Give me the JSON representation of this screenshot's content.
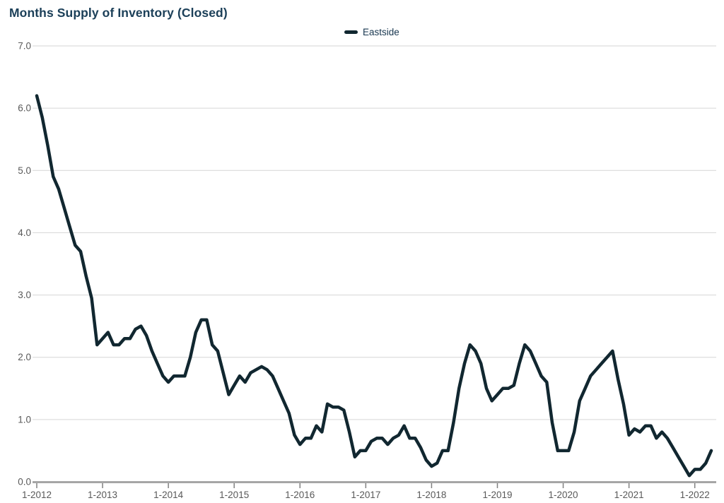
{
  "header": {
    "title": "Months Supply of Inventory (Closed)"
  },
  "legend": {
    "series_label": "Eastside"
  },
  "colors": {
    "title_text": "#1C4059",
    "legend_text": "#17364F",
    "line": "#112730",
    "grid": "#D6D6D6",
    "axis": "#A6A6A6",
    "tick": "#808080",
    "tick_label": "#595959"
  },
  "chart_data": {
    "type": "line",
    "title": "Months Supply of Inventory (Closed)",
    "grid": "horizontal",
    "legend_position": "top-center",
    "ylim": [
      0,
      7
    ],
    "y_ticks": [
      0,
      1,
      2,
      3,
      4,
      5,
      6,
      7
    ],
    "y_tick_labels": [
      "0.0",
      "1.0",
      "2.0",
      "3.0",
      "4.0",
      "5.0",
      "6.0",
      "7.0"
    ],
    "x_tick_labels": [
      "1-2012",
      "1-2013",
      "1-2014",
      "1-2015",
      "1-2016",
      "1-2017",
      "1-2018",
      "1-2019",
      "1-2020",
      "1-2021",
      "1-2022"
    ],
    "x_tick_month_index": [
      0,
      12,
      24,
      36,
      48,
      60,
      72,
      84,
      96,
      108,
      120
    ],
    "series": [
      {
        "name": "Eastside",
        "start": "2012-01",
        "frequency": "monthly",
        "values": [
          6.2,
          5.85,
          5.4,
          4.9,
          4.7,
          4.4,
          4.1,
          3.8,
          3.7,
          3.3,
          2.95,
          2.2,
          2.3,
          2.4,
          2.2,
          2.2,
          2.3,
          2.3,
          2.45,
          2.5,
          2.35,
          2.1,
          1.9,
          1.7,
          1.6,
          1.7,
          1.7,
          1.7,
          2.0,
          2.4,
          2.6,
          2.6,
          2.2,
          2.1,
          1.75,
          1.4,
          1.55,
          1.7,
          1.6,
          1.75,
          1.8,
          1.85,
          1.8,
          1.7,
          1.5,
          1.3,
          1.1,
          0.75,
          0.6,
          0.7,
          0.7,
          0.9,
          0.8,
          1.25,
          1.2,
          1.2,
          1.15,
          0.8,
          0.4,
          0.5,
          0.5,
          0.65,
          0.7,
          0.7,
          0.6,
          0.7,
          0.75,
          0.9,
          0.7,
          0.7,
          0.55,
          0.35,
          0.25,
          0.3,
          0.5,
          0.5,
          0.95,
          1.5,
          1.9,
          2.2,
          2.1,
          1.9,
          1.5,
          1.3,
          1.4,
          1.5,
          1.5,
          1.55,
          1.9,
          2.2,
          2.1,
          1.9,
          1.7,
          1.6,
          0.95,
          0.5,
          0.5,
          0.5,
          0.8,
          1.3,
          1.5,
          1.7,
          1.8,
          1.9,
          2.0,
          2.1,
          1.65,
          1.25,
          0.75,
          0.85,
          0.8,
          0.9,
          0.9,
          0.7,
          0.8,
          0.7,
          0.55,
          0.4,
          0.25,
          0.1,
          0.2,
          0.2,
          0.3,
          0.5
        ]
      }
    ]
  }
}
